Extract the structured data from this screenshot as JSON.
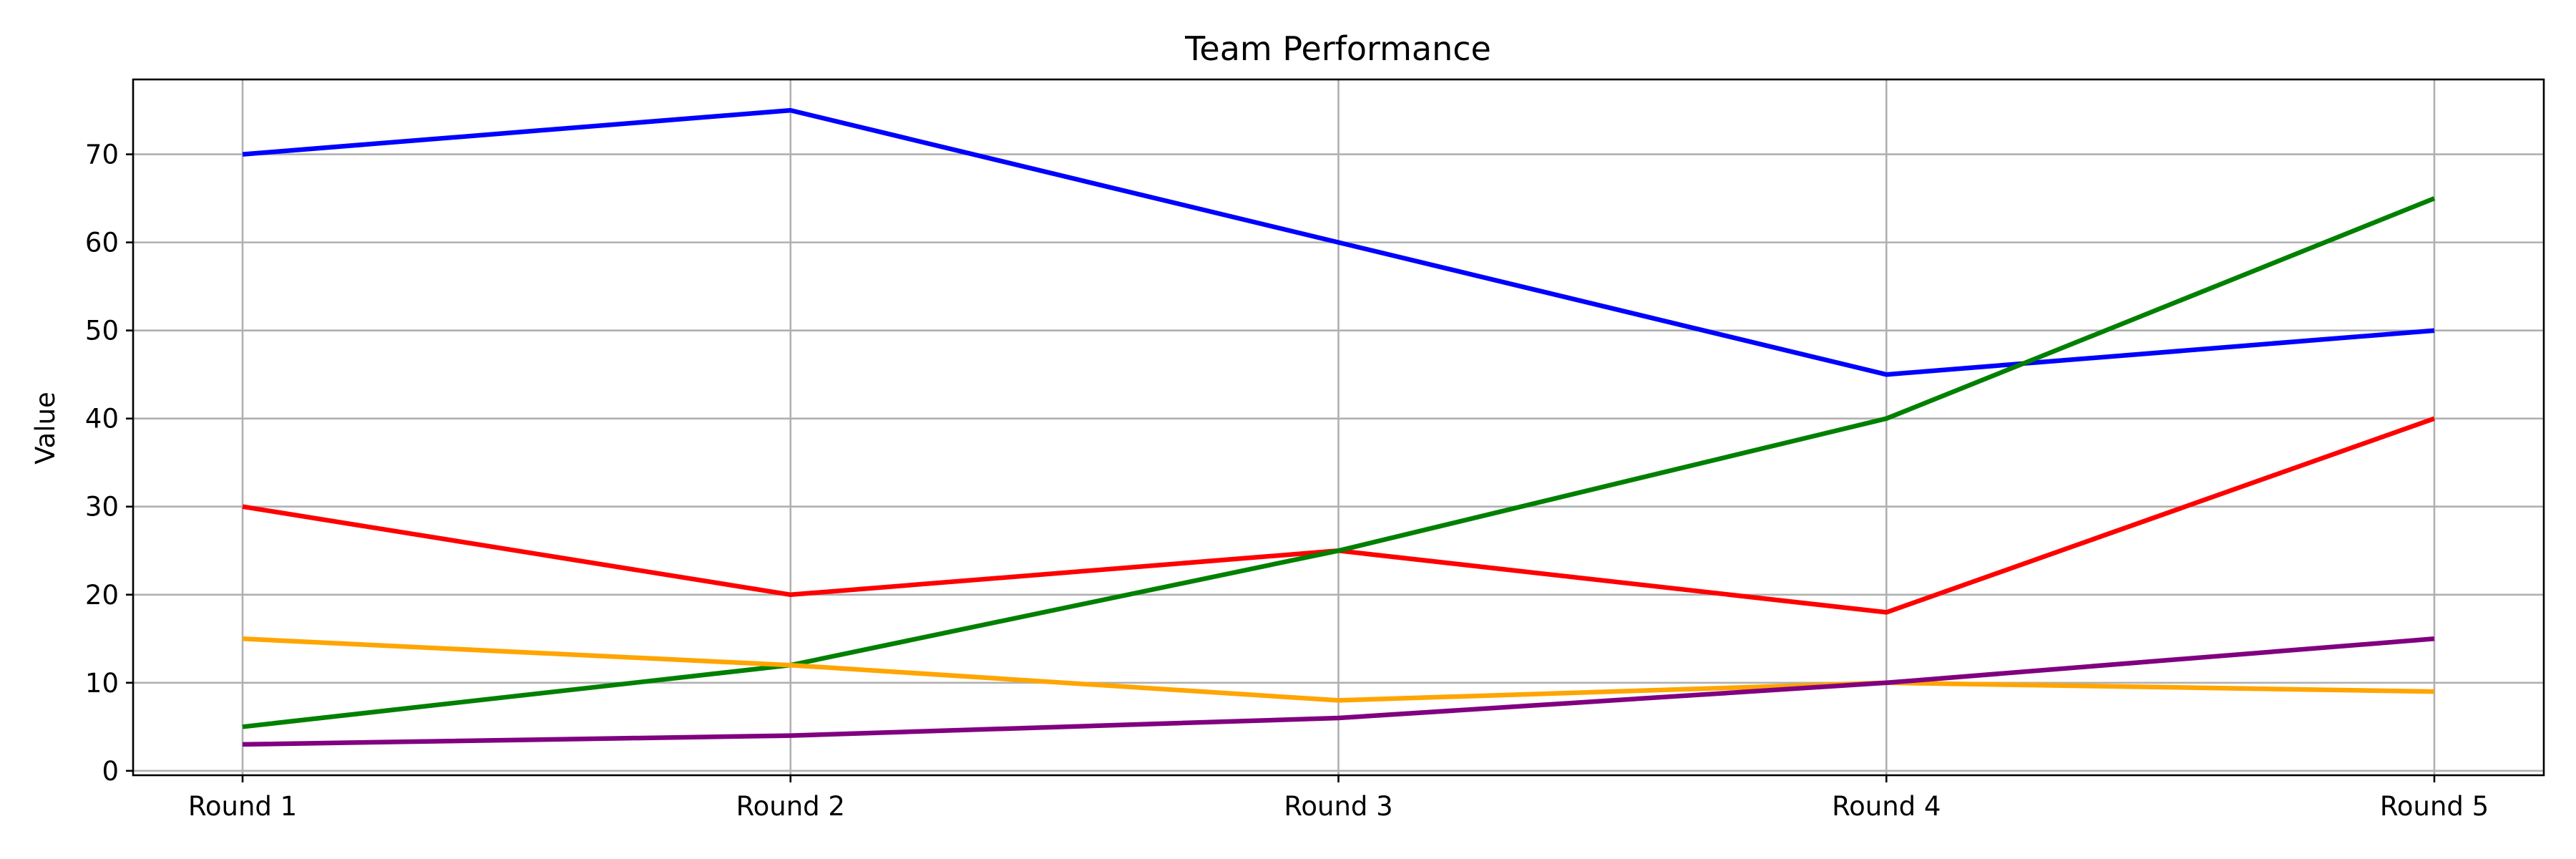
{
  "chart_data": {
    "type": "line",
    "title": "Team Performance",
    "xlabel": "",
    "ylabel": "Value",
    "categories": [
      "Round 1",
      "Round 2",
      "Round 3",
      "Round 4",
      "Round 5"
    ],
    "ylim": [
      -0.5,
      78.5
    ],
    "yticks": [
      0,
      10,
      20,
      30,
      40,
      50,
      60,
      70
    ],
    "grid": true,
    "legend": "none",
    "series": [
      {
        "color": "#0000ff",
        "values": [
          70,
          75,
          60,
          45,
          50
        ]
      },
      {
        "color": "#ff0000",
        "values": [
          30,
          20,
          25,
          18,
          40
        ]
      },
      {
        "color": "#008000",
        "values": [
          5,
          12,
          25,
          40,
          65
        ]
      },
      {
        "color": "#ffa500",
        "values": [
          15,
          12,
          8,
          10,
          9
        ]
      },
      {
        "color": "#800080",
        "values": [
          3,
          4,
          6,
          10,
          15
        ]
      }
    ]
  }
}
